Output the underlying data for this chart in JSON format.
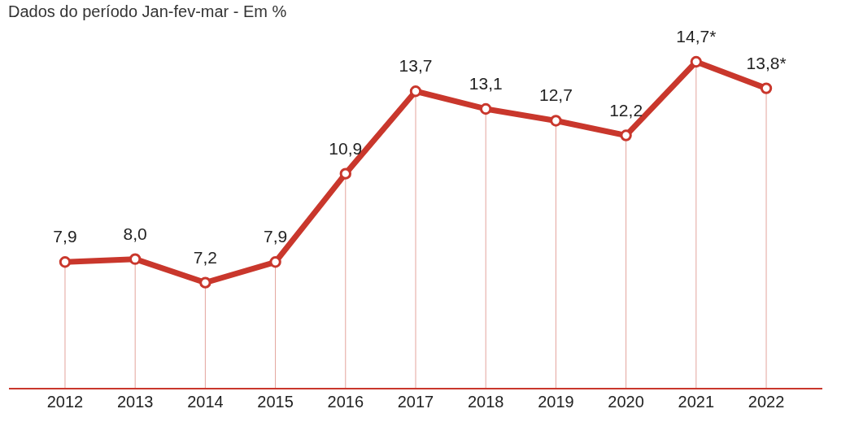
{
  "chart_data": {
    "type": "line",
    "title": "Dados do período Jan-fev-mar - Em %",
    "categories": [
      "2012",
      "2013",
      "2014",
      "2015",
      "2016",
      "2017",
      "2018",
      "2019",
      "2020",
      "2021",
      "2022"
    ],
    "series": [
      {
        "color": "#c9372c",
        "values": [
          7.9,
          8.0,
          7.2,
          7.9,
          10.9,
          13.7,
          13.1,
          12.7,
          12.2,
          14.7,
          13.8
        ],
        "value_labels": [
          "7,9",
          "8,0",
          "7,2",
          "7,9",
          "10,9",
          "13,7",
          "13,1",
          "12,7",
          "12,2",
          "14,7*",
          "13,8*"
        ]
      }
    ],
    "marker": "circle",
    "line_style": "solid",
    "grid": "x"
  }
}
